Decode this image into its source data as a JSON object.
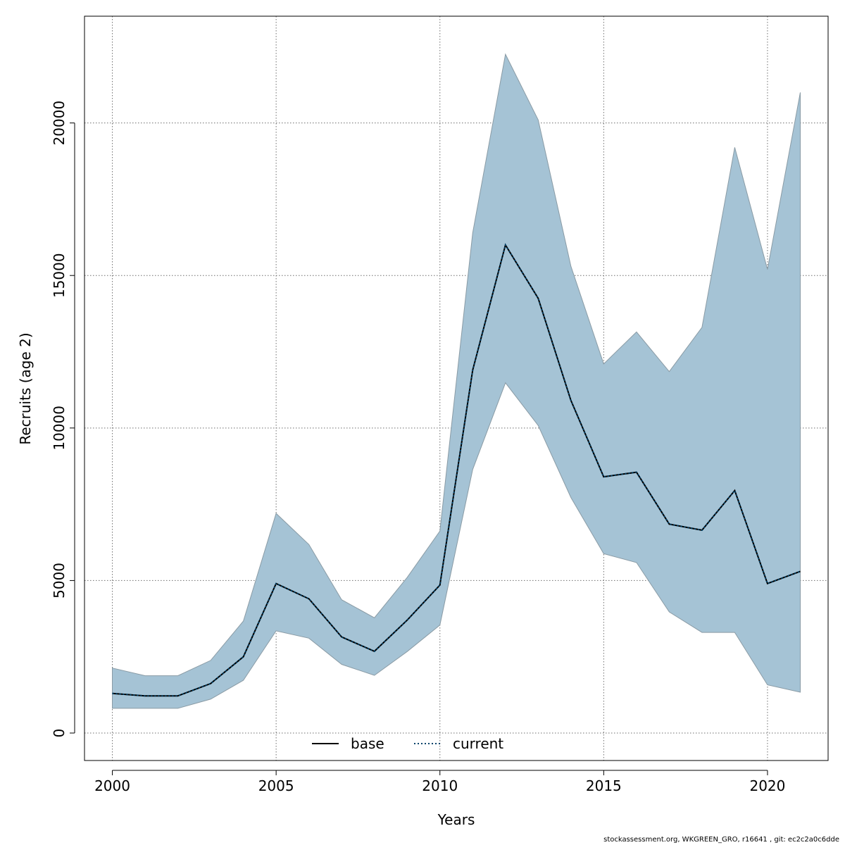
{
  "chart_data": {
    "type": "area",
    "xlabel": "Years",
    "ylabel": "Recruits (age 2)",
    "xlim": [
      1999.15,
      2021.85
    ],
    "ylim": [
      -900,
      23500
    ],
    "x_ticks": [
      2000,
      2005,
      2010,
      2015,
      2020
    ],
    "y_ticks": [
      0,
      5000,
      10000,
      15000,
      20000
    ],
    "grid": true,
    "legend_position": "bottom-center",
    "x": [
      2000,
      2001,
      2002,
      2003,
      2004,
      2005,
      2006,
      2007,
      2008,
      2009,
      2010,
      2011,
      2012,
      2013,
      2014,
      2015,
      2016,
      2017,
      2018,
      2019,
      2020,
      2021
    ],
    "series": [
      {
        "name": "base",
        "style": "solid",
        "color": "#000000",
        "values": [
          1300,
          1220,
          1220,
          1620,
          2500,
          4900,
          4400,
          3150,
          2680,
          3700,
          4850,
          11900,
          16000,
          14250,
          10900,
          8400,
          8550,
          6850,
          6650,
          7950,
          4900,
          5300
        ]
      },
      {
        "name": "current",
        "style": "dotted",
        "color": "#00436b",
        "values": [
          1300,
          1220,
          1220,
          1620,
          2500,
          4900,
          4400,
          3150,
          2680,
          3700,
          4850,
          11900,
          16000,
          14250,
          10900,
          8400,
          8550,
          6850,
          6650,
          7950,
          4900,
          5300
        ]
      }
    ],
    "band": {
      "color": "#a5c3d5",
      "upper": [
        2130,
        1880,
        1880,
        2380,
        3670,
        7200,
        6180,
        4370,
        3780,
        5100,
        6620,
        16400,
        22250,
        20100,
        15300,
        12100,
        13150,
        11850,
        13300,
        19200,
        15200,
        21000
      ],
      "lower": [
        810,
        810,
        810,
        1110,
        1730,
        3350,
        3110,
        2250,
        1890,
        2670,
        3540,
        8640,
        11480,
        10080,
        7720,
        5880,
        5590,
        3970,
        3300,
        3300,
        1580,
        1340
      ]
    }
  },
  "footer": "stockassessment.org, WKGREEN_GRO, r16641 , git: ec2c2a0c6dde"
}
